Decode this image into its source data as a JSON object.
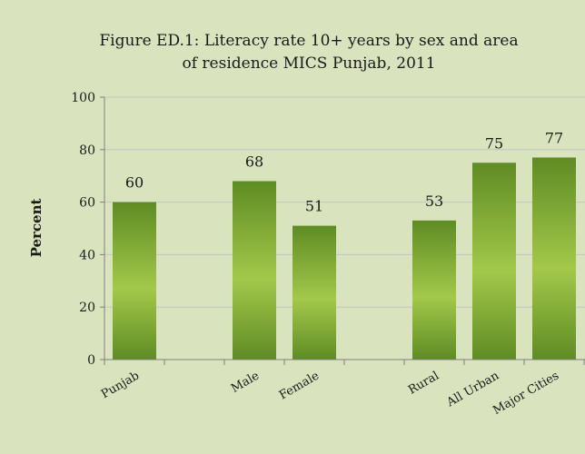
{
  "chart_data": {
    "type": "bar",
    "title_lines": [
      "Figure ED.1: Literacy rate 10+ years by sex and area",
      "of residence MICS Punjab, 2011"
    ],
    "ylabel": "Percent",
    "xlabel": "",
    "ylim": [
      0,
      100
    ],
    "yticks": [
      0,
      20,
      40,
      60,
      80,
      100
    ],
    "grid": true,
    "legend": "none",
    "categories": [
      "Punjab",
      "",
      "Male",
      "Female",
      "",
      "Rural",
      "All  Urban",
      "Major Cities"
    ],
    "values": [
      60,
      null,
      68,
      51,
      null,
      53,
      75,
      77
    ],
    "data_labels": [
      "60",
      "",
      "68",
      "51",
      "",
      "53",
      "75",
      "77"
    ],
    "bar_color_light": "#a3c84a",
    "bar_color_dark": "#5e8c24"
  }
}
